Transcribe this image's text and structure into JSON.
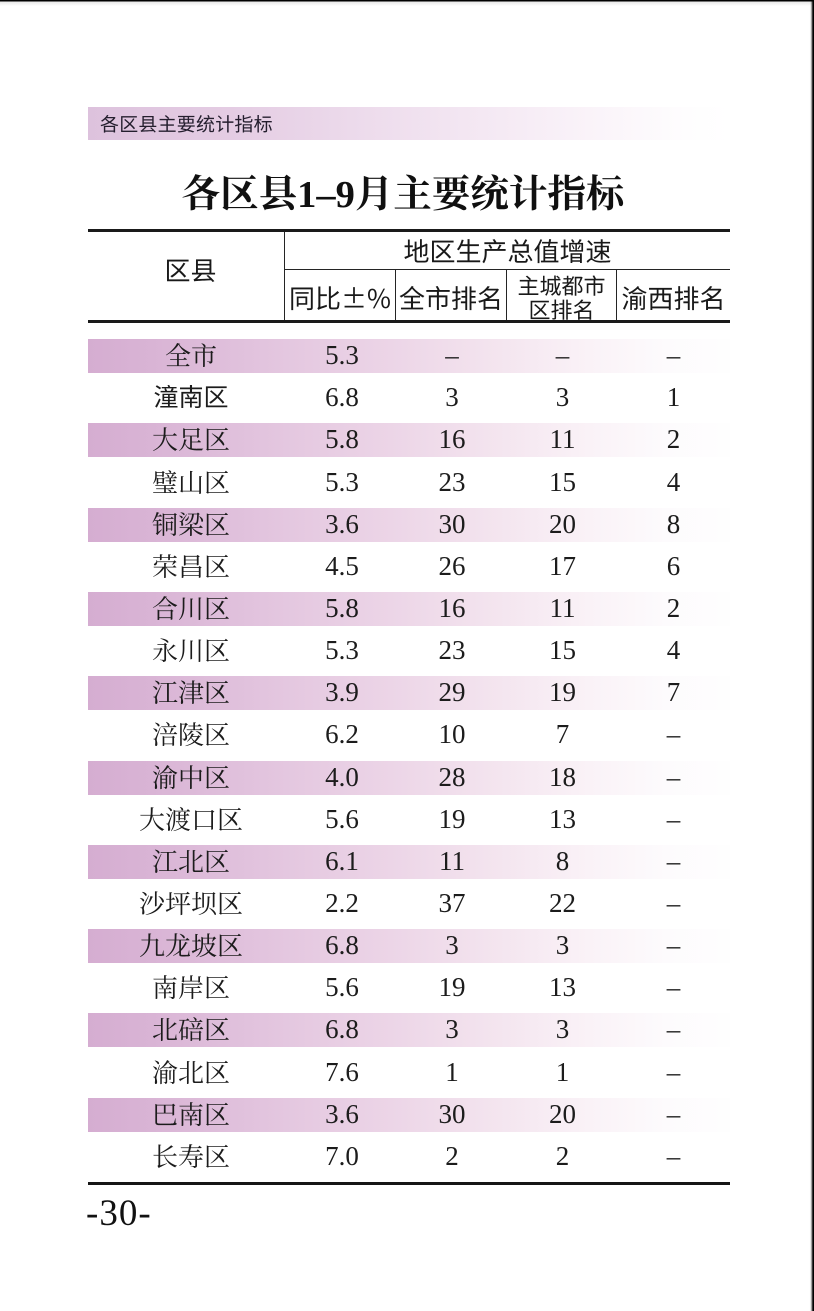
{
  "page": {
    "header_banner": "各区县主要统计指标",
    "title": "各区县1–9月主要统计指标",
    "page_number": "-30-"
  },
  "table": {
    "columns": {
      "region": "区县",
      "group": "地区生产总值增速",
      "sub": [
        "同比±%",
        "全市排名",
        "主城都市区排名",
        "渝西排名"
      ]
    },
    "rows": [
      {
        "name": "全市",
        "yoy": "5.3",
        "city_rank": "–",
        "metro_rank": "–",
        "yuxi_rank": "–",
        "emphasis": false
      },
      {
        "name": "潼南区",
        "yoy": "6.8",
        "city_rank": "3",
        "metro_rank": "3",
        "yuxi_rank": "1",
        "emphasis": true
      },
      {
        "name": "大足区",
        "yoy": "5.8",
        "city_rank": "16",
        "metro_rank": "11",
        "yuxi_rank": "2",
        "emphasis": false
      },
      {
        "name": "璧山区",
        "yoy": "5.3",
        "city_rank": "23",
        "metro_rank": "15",
        "yuxi_rank": "4",
        "emphasis": false
      },
      {
        "name": "铜梁区",
        "yoy": "3.6",
        "city_rank": "30",
        "metro_rank": "20",
        "yuxi_rank": "8",
        "emphasis": false
      },
      {
        "name": "荣昌区",
        "yoy": "4.5",
        "city_rank": "26",
        "metro_rank": "17",
        "yuxi_rank": "6",
        "emphasis": false
      },
      {
        "name": "合川区",
        "yoy": "5.8",
        "city_rank": "16",
        "metro_rank": "11",
        "yuxi_rank": "2",
        "emphasis": false
      },
      {
        "name": "永川区",
        "yoy": "5.3",
        "city_rank": "23",
        "metro_rank": "15",
        "yuxi_rank": "4",
        "emphasis": false
      },
      {
        "name": "江津区",
        "yoy": "3.9",
        "city_rank": "29",
        "metro_rank": "19",
        "yuxi_rank": "7",
        "emphasis": false
      },
      {
        "name": "涪陵区",
        "yoy": "6.2",
        "city_rank": "10",
        "metro_rank": "7",
        "yuxi_rank": "–",
        "emphasis": false
      },
      {
        "name": "渝中区",
        "yoy": "4.0",
        "city_rank": "28",
        "metro_rank": "18",
        "yuxi_rank": "–",
        "emphasis": false
      },
      {
        "name": "大渡口区",
        "yoy": "5.6",
        "city_rank": "19",
        "metro_rank": "13",
        "yuxi_rank": "–",
        "emphasis": false
      },
      {
        "name": "江北区",
        "yoy": "6.1",
        "city_rank": "11",
        "metro_rank": "8",
        "yuxi_rank": "–",
        "emphasis": false
      },
      {
        "name": "沙坪坝区",
        "yoy": "2.2",
        "city_rank": "37",
        "metro_rank": "22",
        "yuxi_rank": "–",
        "emphasis": false
      },
      {
        "name": "九龙坡区",
        "yoy": "6.8",
        "city_rank": "3",
        "metro_rank": "3",
        "yuxi_rank": "–",
        "emphasis": false
      },
      {
        "name": "南岸区",
        "yoy": "5.6",
        "city_rank": "19",
        "metro_rank": "13",
        "yuxi_rank": "–",
        "emphasis": false
      },
      {
        "name": "北碚区",
        "yoy": "6.8",
        "city_rank": "3",
        "metro_rank": "3",
        "yuxi_rank": "–",
        "emphasis": false
      },
      {
        "name": "渝北区",
        "yoy": "7.6",
        "city_rank": "1",
        "metro_rank": "1",
        "yuxi_rank": "–",
        "emphasis": false
      },
      {
        "name": "巴南区",
        "yoy": "3.6",
        "city_rank": "30",
        "metro_rank": "20",
        "yuxi_rank": "–",
        "emphasis": false
      },
      {
        "name": "长寿区",
        "yoy": "7.0",
        "city_rank": "2",
        "metro_rank": "2",
        "yuxi_rank": "–",
        "emphasis": false
      }
    ]
  },
  "colors": {
    "band_start": "#d5add1",
    "banner_start": "#ddc2dd",
    "text": "#1c1c1c",
    "line": "#1a1a1a"
  }
}
